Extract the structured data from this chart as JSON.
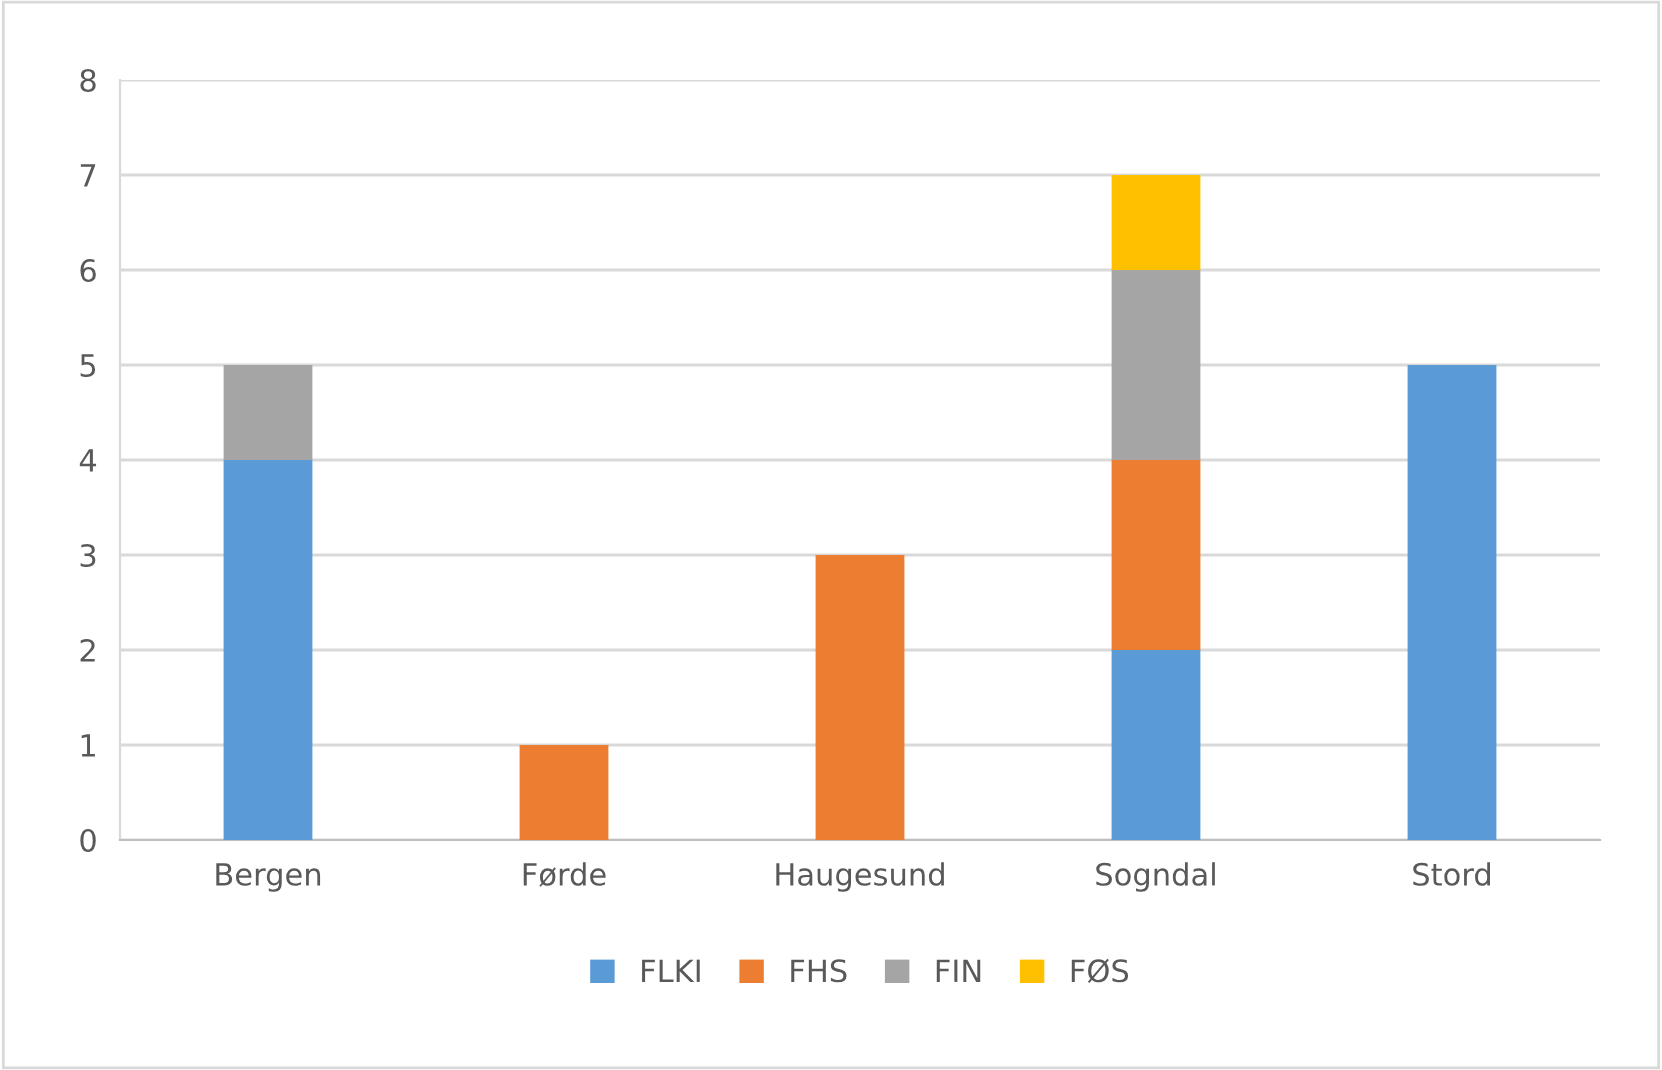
{
  "chart_data": {
    "type": "bar",
    "stacked": true,
    "categories": [
      "Bergen",
      "Førde",
      "Haugesund",
      "Sogndal",
      "Stord"
    ],
    "series": [
      {
        "name": "FLKI",
        "color": "#5b9bd5",
        "values": [
          4,
          0,
          0,
          2,
          5
        ]
      },
      {
        "name": "FHS",
        "color": "#ed7d31",
        "values": [
          0,
          1,
          3,
          2,
          0
        ]
      },
      {
        "name": "FIN",
        "color": "#a5a5a5",
        "values": [
          1,
          0,
          0,
          2,
          0
        ]
      },
      {
        "name": "FØS",
        "color": "#ffc000",
        "values": [
          0,
          0,
          0,
          1,
          0
        ]
      }
    ],
    "ylim": [
      0,
      8
    ],
    "yticks": [
      0,
      1,
      2,
      3,
      4,
      5,
      6,
      7,
      8
    ],
    "grid": "y",
    "legend": "bottom"
  }
}
